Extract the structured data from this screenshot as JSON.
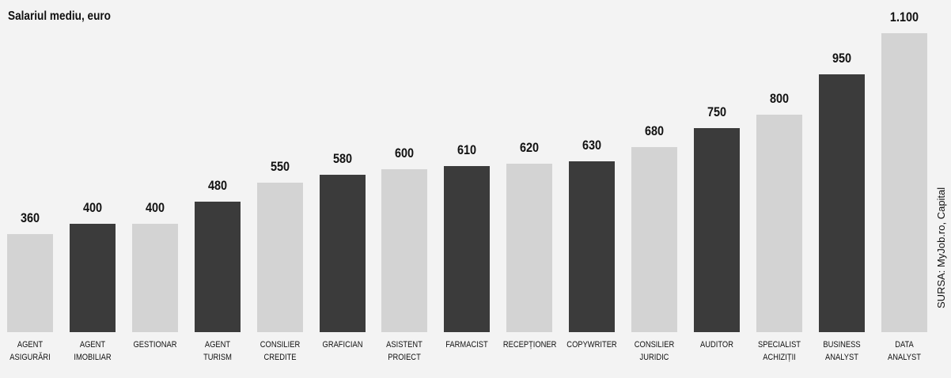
{
  "chart_data": {
    "type": "bar",
    "title": "Salariul mediu, euro",
    "source": "SURSA: MyJob.ro, Capital",
    "categories": [
      "AGENT ASIGURĂRI",
      "AGENT IMOBILIAR",
      "GESTIONAR",
      "AGENT TURISM",
      "CONSILIER CREDITE",
      "GRAFICIAN",
      "ASISTENT PROIECT",
      "FARMACIST",
      "RECEPȚIONER",
      "COPYWRITER",
      "CONSILIER JURIDIC",
      "AUDITOR",
      "SPECIALIST ACHIZIȚII",
      "BUSINESS ANALYST",
      "DATA ANALYST"
    ],
    "values": [
      360,
      400,
      400,
      480,
      550,
      580,
      600,
      610,
      620,
      630,
      680,
      750,
      800,
      950,
      1100
    ],
    "value_labels": [
      "360",
      "400",
      "400",
      "480",
      "550",
      "580",
      "600",
      "610",
      "620",
      "630",
      "680",
      "750",
      "800",
      "950",
      "1.100"
    ],
    "colors": [
      "#d3d3d3",
      "#3b3b3b"
    ]
  }
}
